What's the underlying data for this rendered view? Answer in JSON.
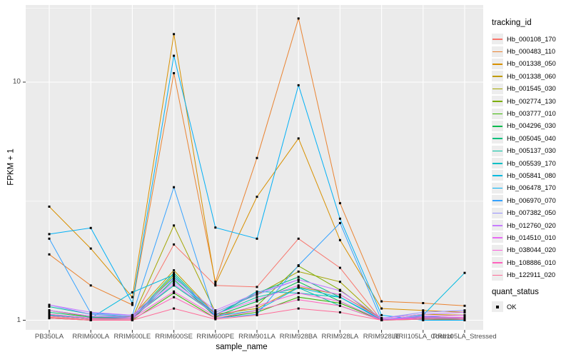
{
  "chart_data": {
    "type": "line",
    "title": "",
    "xlabel": "sample_name",
    "ylabel": "FPKM + 1",
    "y_scale": "log10",
    "y_ticks": [
      1,
      10
    ],
    "y_minor_gridlines": [
      3.16,
      20.4
    ],
    "ylim": [
      0.97,
      21
    ],
    "grid": true,
    "legend_position": "right",
    "panel_bg": "#EBEBEB",
    "grid_color": "#FFFFFF",
    "point_shape": "square",
    "point_color": "#000000",
    "legend_title": "tracking_id",
    "point_legend": {
      "title": "quant_status",
      "items": [
        {
          "label": "OK",
          "marker": "black-square"
        }
      ]
    },
    "categories": [
      "PB350LA",
      "RRIM600LA",
      "RRIM600LE",
      "RRIM600SE",
      "RRIM600PE",
      "RRIM901LA",
      "RRIM928BA",
      "RRIM928LA",
      "RRIM928LE",
      "RRII105LA_Control",
      "RRII105LA_Stressed"
    ],
    "series": [
      {
        "name": "Hb_000108_170",
        "color": "#F8766D",
        "values": [
          1.03,
          1.0,
          1.0,
          2.08,
          1.4,
          1.38,
          2.2,
          1.66,
          1.0,
          1.02,
          1.0
        ]
      },
      {
        "name": "Hb_000483_110",
        "color": "#EA8331",
        "values": [
          1.89,
          1.4,
          1.16,
          10.9,
          1.45,
          4.8,
          18.5,
          3.1,
          1.2,
          1.18,
          1.15
        ]
      },
      {
        "name": "Hb_001338_050",
        "color": "#D89000",
        "values": [
          3.0,
          2.0,
          1.25,
          15.9,
          1.42,
          3.3,
          5.8,
          2.17,
          1.12,
          1.1,
          1.08
        ]
      },
      {
        "name": "Hb_001338_060",
        "color": "#C09B00",
        "values": [
          1.06,
          1.02,
          1.04,
          1.62,
          1.06,
          1.12,
          1.38,
          1.28,
          1.02,
          1.06,
          1.05
        ]
      },
      {
        "name": "Hb_001545_030",
        "color": "#A3A500",
        "values": [
          1.1,
          1.03,
          1.02,
          2.5,
          1.08,
          1.28,
          1.6,
          1.45,
          1.0,
          1.04,
          1.02
        ]
      },
      {
        "name": "Hb_002774_130",
        "color": "#7CAE00",
        "values": [
          1.04,
          1.01,
          1.01,
          1.55,
          1.03,
          1.15,
          1.69,
          1.34,
          1.0,
          1.02,
          1.01
        ]
      },
      {
        "name": "Hb_003777_010",
        "color": "#39B600",
        "values": [
          1.02,
          1.0,
          1.0,
          1.3,
          1.02,
          1.08,
          1.25,
          1.18,
          1.0,
          1.01,
          1.0
        ]
      },
      {
        "name": "Hb_004296_030",
        "color": "#00BB4E",
        "values": [
          1.05,
          1.02,
          1.01,
          1.48,
          1.04,
          1.2,
          1.45,
          1.2,
          1.0,
          1.02,
          1.01
        ]
      },
      {
        "name": "Hb_005045_040",
        "color": "#00BF7D",
        "values": [
          1.08,
          1.03,
          1.02,
          1.58,
          1.05,
          1.3,
          1.52,
          1.25,
          1.01,
          1.03,
          1.02
        ]
      },
      {
        "name": "Hb_005137_030",
        "color": "#00C1A3",
        "values": [
          1.14,
          1.06,
          1.03,
          1.4,
          1.06,
          1.25,
          1.37,
          1.15,
          1.0,
          1.02,
          1.01
        ]
      },
      {
        "name": "Hb_005539_170",
        "color": "#00BFC4",
        "values": [
          1.1,
          1.04,
          1.02,
          1.52,
          1.05,
          1.32,
          1.3,
          1.25,
          1.01,
          1.03,
          1.02
        ]
      },
      {
        "name": "Hb_005841_080",
        "color": "#00BAE0",
        "values": [
          1.05,
          1.02,
          1.31,
          1.55,
          1.04,
          1.1,
          1.37,
          1.25,
          1.0,
          1.05,
          1.58
        ]
      },
      {
        "name": "Hb_006478_170",
        "color": "#00B0F6",
        "values": [
          2.3,
          2.44,
          1.18,
          12.9,
          2.45,
          2.2,
          9.7,
          2.67,
          1.05,
          1.0,
          1.0
        ]
      },
      {
        "name": "Hb_006970_070",
        "color": "#35A2FF",
        "values": [
          2.2,
          1.07,
          1.05,
          3.62,
          1.02,
          1.06,
          1.7,
          2.56,
          1.0,
          1.04,
          1.02
        ]
      },
      {
        "name": "Hb_007382_050",
        "color": "#9590FF",
        "values": [
          1.16,
          1.06,
          1.04,
          1.45,
          1.08,
          1.28,
          1.48,
          1.33,
          1.02,
          1.08,
          1.1
        ]
      },
      {
        "name": "Hb_012760_020",
        "color": "#C77CFF",
        "values": [
          1.16,
          1.08,
          1.05,
          1.5,
          1.1,
          1.3,
          1.48,
          1.33,
          1.02,
          1.06,
          1.08
        ]
      },
      {
        "name": "Hb_014510_010",
        "color": "#E76BF3",
        "values": [
          1.1,
          1.04,
          1.03,
          1.42,
          1.06,
          1.22,
          1.4,
          1.28,
          1.01,
          1.04,
          1.05
        ]
      },
      {
        "name": "Hb_038044_020",
        "color": "#FA62DB",
        "values": [
          1.06,
          1.02,
          1.02,
          1.32,
          1.04,
          1.15,
          1.3,
          1.2,
          1.0,
          1.03,
          1.03
        ]
      },
      {
        "name": "Hb_108886_010",
        "color": "#FF62BC",
        "values": [
          1.04,
          1.01,
          1.01,
          1.25,
          1.02,
          1.1,
          1.22,
          1.15,
          1.0,
          1.02,
          1.02
        ]
      },
      {
        "name": "Hb_122911_020",
        "color": "#FF6A98",
        "values": [
          1.02,
          1.0,
          1.0,
          1.12,
          1.01,
          1.05,
          1.12,
          1.08,
          1.0,
          1.01,
          1.01
        ]
      }
    ]
  }
}
